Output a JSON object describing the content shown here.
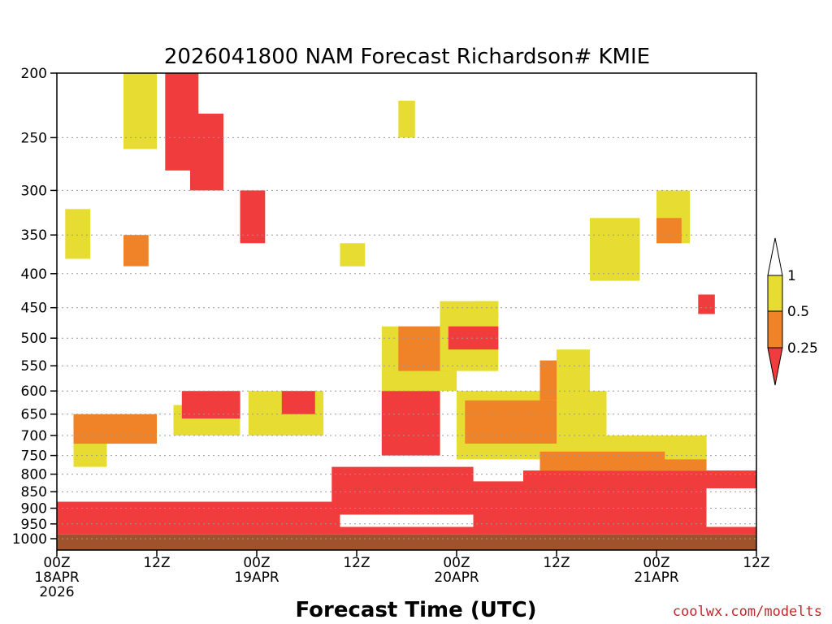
{
  "chart_data": {
    "type": "heatmap",
    "title": "2026041800 NAM Forecast Richardson# KMIE",
    "xlabel": "Forecast Time (UTC)",
    "ylabel": "",
    "credit": "coolwx.com/modelts",
    "x_range_hours": [
      0,
      84
    ],
    "y_axis": {
      "scale": "log",
      "range": [
        200,
        1000
      ],
      "inverted": true
    },
    "y_ticks": [
      200,
      250,
      300,
      350,
      400,
      450,
      500,
      550,
      600,
      650,
      700,
      750,
      800,
      850,
      900,
      950,
      1000
    ],
    "x_ticks": [
      {
        "hour": 0,
        "lines": [
          "00Z",
          "18APR",
          "2026"
        ]
      },
      {
        "hour": 12,
        "lines": [
          "12Z"
        ]
      },
      {
        "hour": 24,
        "lines": [
          "00Z",
          "19APR"
        ]
      },
      {
        "hour": 36,
        "lines": [
          "12Z"
        ]
      },
      {
        "hour": 48,
        "lines": [
          "00Z",
          "20APR"
        ]
      },
      {
        "hour": 60,
        "lines": [
          "12Z"
        ]
      },
      {
        "hour": 72,
        "lines": [
          "00Z",
          "21APR"
        ]
      },
      {
        "hour": 84,
        "lines": [
          "12Z"
        ]
      }
    ],
    "grid": {
      "horizontal": "dotted",
      "vertical": false
    },
    "ground_level_hpa": 985,
    "colors": {
      "lt_025": "#f03c3c",
      "025_05": "#f08228",
      "05_1": "#e6dc32",
      "ground": "#a0522d"
    },
    "legend": {
      "placement": "right",
      "levels": [
        "1",
        "0.5",
        "0.25"
      ],
      "bins": [
        {
          "range": "> 1",
          "color": "#ffffff"
        },
        {
          "range": "0.5 - 1",
          "color": "#e6dc32"
        },
        {
          "range": "0.25 - 0.5",
          "color": "#f08228"
        },
        {
          "range": "< 0.25",
          "color": "#f03c3c"
        }
      ]
    },
    "regions": [
      {
        "class": "lt_025",
        "hours": [
          0,
          84
        ],
        "p_hpa": [
          960,
          985
        ]
      },
      {
        "class": "lt_025",
        "hours": [
          0,
          34
        ],
        "p_hpa": [
          880,
          960
        ]
      },
      {
        "class": "lt_025",
        "hours": [
          33,
          50
        ],
        "p_hpa": [
          780,
          920
        ]
      },
      {
        "class": "lt_025",
        "hours": [
          50,
          78
        ],
        "p_hpa": [
          820,
          960
        ]
      },
      {
        "class": "lt_025",
        "hours": [
          56,
          84
        ],
        "p_hpa": [
          790,
          840
        ]
      },
      {
        "class": "05_1",
        "hours": [
          2,
          6
        ],
        "p_hpa": [
          690,
          780
        ]
      },
      {
        "class": "025_05",
        "hours": [
          2,
          12
        ],
        "p_hpa": [
          650,
          720
        ]
      },
      {
        "class": "05_1",
        "hours": [
          14,
          22
        ],
        "p_hpa": [
          630,
          700
        ]
      },
      {
        "class": "lt_025",
        "hours": [
          15,
          22
        ],
        "p_hpa": [
          600,
          660
        ]
      },
      {
        "class": "05_1",
        "hours": [
          23,
          32
        ],
        "p_hpa": [
          600,
          700
        ]
      },
      {
        "class": "lt_025",
        "hours": [
          27,
          31
        ],
        "p_hpa": [
          600,
          650
        ]
      },
      {
        "class": "05_1",
        "hours": [
          39,
          48
        ],
        "p_hpa": [
          480,
          600
        ]
      },
      {
        "class": "025_05",
        "hours": [
          41,
          47
        ],
        "p_hpa": [
          480,
          560
        ]
      },
      {
        "class": "lt_025",
        "hours": [
          39,
          46
        ],
        "p_hpa": [
          600,
          750
        ]
      },
      {
        "class": "05_1",
        "hours": [
          46,
          53
        ],
        "p_hpa": [
          440,
          560
        ]
      },
      {
        "class": "05_1",
        "hours": [
          48,
          66
        ],
        "p_hpa": [
          600,
          760
        ]
      },
      {
        "class": "025_05",
        "hours": [
          49,
          60
        ],
        "p_hpa": [
          620,
          720
        ]
      },
      {
        "class": "025_05",
        "hours": [
          58,
          62
        ],
        "p_hpa": [
          540,
          620
        ]
      },
      {
        "class": "05_1",
        "hours": [
          60,
          64
        ],
        "p_hpa": [
          520,
          700
        ]
      },
      {
        "class": "05_1",
        "hours": [
          63,
          78
        ],
        "p_hpa": [
          700,
          790
        ]
      },
      {
        "class": "025_05",
        "hours": [
          58,
          78
        ],
        "p_hpa": [
          740,
          790
        ]
      },
      {
        "class": "05_1",
        "hours": [
          73,
          78
        ],
        "p_hpa": [
          720,
          760
        ]
      },
      {
        "class": "05_1",
        "hours": [
          8,
          12
        ],
        "p_hpa": [
          200,
          260
        ]
      },
      {
        "class": "lt_025",
        "hours": [
          13,
          17
        ],
        "p_hpa": [
          200,
          280
        ]
      },
      {
        "class": "lt_025",
        "hours": [
          16,
          20
        ],
        "p_hpa": [
          230,
          300
        ]
      },
      {
        "class": "lt_025",
        "hours": [
          22,
          25
        ],
        "p_hpa": [
          300,
          360
        ]
      },
      {
        "class": "05_1",
        "hours": [
          1,
          4
        ],
        "p_hpa": [
          320,
          380
        ]
      },
      {
        "class": "025_05",
        "hours": [
          8,
          11
        ],
        "p_hpa": [
          350,
          390
        ]
      },
      {
        "class": "lt_025",
        "hours": [
          47,
          53
        ],
        "p_hpa": [
          480,
          520
        ]
      },
      {
        "class": "05_1",
        "hours": [
          72,
          76
        ],
        "p_hpa": [
          300,
          360
        ]
      },
      {
        "class": "025_05",
        "hours": [
          72,
          75
        ],
        "p_hpa": [
          330,
          360
        ]
      },
      {
        "class": "lt_025",
        "hours": [
          77,
          79
        ],
        "p_hpa": [
          430,
          460
        ]
      },
      {
        "class": "05_1",
        "hours": [
          64,
          70
        ],
        "p_hpa": [
          330,
          410
        ]
      },
      {
        "class": "05_1",
        "hours": [
          34,
          37
        ],
        "p_hpa": [
          360,
          390
        ]
      },
      {
        "class": "05_1",
        "hours": [
          41,
          43
        ],
        "p_hpa": [
          220,
          250
        ]
      },
      {
        "class": "05_1",
        "hours": [
          50,
          53
        ],
        "p_hpa": [
          440,
          470
        ]
      }
    ]
  }
}
